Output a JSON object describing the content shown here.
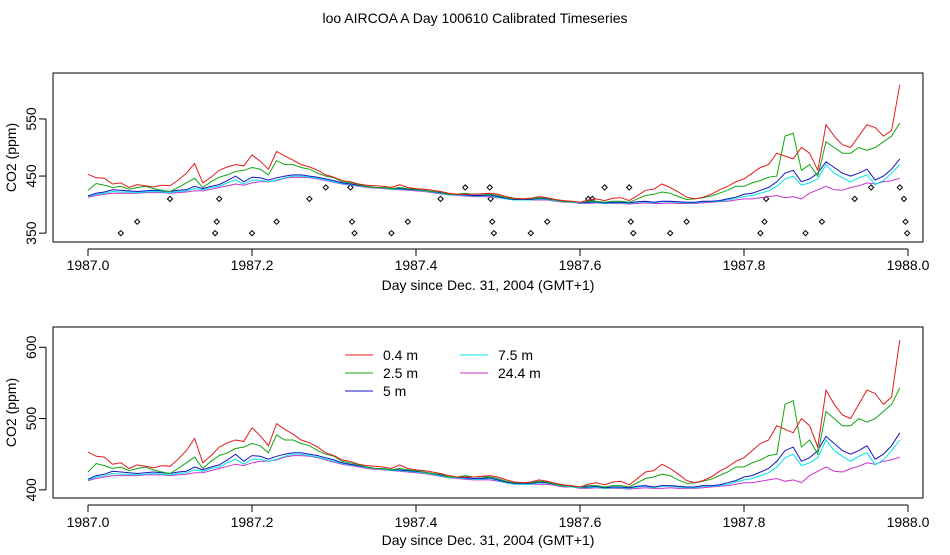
{
  "title": "loo AIRCOA A  Day 100610  Calibrated Timeseries",
  "colors": {
    "0.4 m": "#e41a1c",
    "2.5 m": "#11a611",
    "5 m": "#1414c8",
    "7.5 m": "#00e5e5",
    "24.4 m": "#cc33cc",
    "flags": "#000000"
  },
  "chart_data": [
    {
      "type": "line",
      "xlabel": "Day since Dec. 31, 2004 (GMT+1)",
      "ylabel": "CO2 (ppm)",
      "xlim": [
        1987.0,
        1988.0
      ],
      "ylim": [
        345,
        620
      ],
      "xticks": [
        "1987.0",
        "1987.2",
        "1987.4",
        "1987.6",
        "1987.8",
        "1988.0"
      ],
      "yticks": [
        "350",
        "450",
        "550"
      ],
      "legend": "none",
      "x": [
        1987.0,
        1987.01,
        1987.02,
        1987.03,
        1987.04,
        1987.05,
        1987.06,
        1987.07,
        1987.08,
        1987.09,
        1987.1,
        1987.11,
        1987.12,
        1987.13,
        1987.14,
        1987.15,
        1987.16,
        1987.17,
        1987.18,
        1987.19,
        1987.2,
        1987.21,
        1987.22,
        1987.23,
        1987.24,
        1987.25,
        1987.26,
        1987.27,
        1987.28,
        1987.29,
        1987.3,
        1987.31,
        1987.32,
        1987.33,
        1987.34,
        1987.35,
        1987.36,
        1987.37,
        1987.38,
        1987.39,
        1987.4,
        1987.41,
        1987.42,
        1987.43,
        1987.44,
        1987.45,
        1987.46,
        1987.47,
        1987.48,
        1987.49,
        1987.5,
        1987.51,
        1987.52,
        1987.53,
        1987.54,
        1987.55,
        1987.56,
        1987.57,
        1987.58,
        1987.59,
        1987.6,
        1987.61,
        1987.62,
        1987.63,
        1987.64,
        1987.65,
        1987.66,
        1987.67,
        1987.68,
        1987.69,
        1987.7,
        1987.71,
        1987.72,
        1987.73,
        1987.74,
        1987.75,
        1987.76,
        1987.77,
        1987.78,
        1987.79,
        1987.8,
        1987.81,
        1987.82,
        1987.83,
        1987.84,
        1987.85,
        1987.86,
        1987.87,
        1987.88,
        1987.89,
        1987.9,
        1987.91,
        1987.92,
        1987.93,
        1987.94,
        1987.95,
        1987.96,
        1987.97,
        1987.98,
        1987.99
      ],
      "series": [
        {
          "name": "0.4 m",
          "values": [
            453,
            447,
            446,
            436,
            438,
            430,
            435,
            433,
            431,
            434,
            433,
            443,
            455,
            472,
            438,
            448,
            460,
            466,
            470,
            468,
            487,
            476,
            462,
            493,
            485,
            478,
            470,
            466,
            460,
            452,
            448,
            442,
            440,
            436,
            434,
            433,
            432,
            430,
            435,
            430,
            428,
            427,
            425,
            423,
            420,
            418,
            418,
            418,
            419,
            420,
            418,
            414,
            411,
            410,
            411,
            414,
            412,
            409,
            407,
            406,
            404,
            408,
            410,
            407,
            411,
            412,
            407,
            416,
            425,
            427,
            436,
            430,
            422,
            413,
            410,
            413,
            418,
            426,
            432,
            440,
            445,
            455,
            465,
            470,
            490,
            485,
            480,
            500,
            490,
            460,
            540,
            520,
            505,
            500,
            520,
            540,
            535,
            520,
            530,
            610
          ]
        },
        {
          "name": "2.5 m",
          "values": [
            425,
            437,
            434,
            430,
            432,
            427,
            430,
            432,
            428,
            425,
            423,
            430,
            438,
            446,
            430,
            440,
            448,
            452,
            458,
            460,
            465,
            462,
            452,
            477,
            470,
            470,
            465,
            462,
            455,
            450,
            447,
            440,
            438,
            435,
            432,
            430,
            430,
            428,
            430,
            428,
            427,
            425,
            423,
            422,
            418,
            418,
            420,
            418,
            418,
            418,
            416,
            412,
            410,
            410,
            410,
            412,
            411,
            408,
            406,
            405,
            404,
            406,
            406,
            404,
            406,
            406,
            404,
            410,
            416,
            418,
            422,
            420,
            414,
            409,
            410,
            412,
            415,
            420,
            425,
            432,
            432,
            438,
            442,
            448,
            450,
            520,
            525,
            460,
            470,
            450,
            510,
            500,
            490,
            490,
            500,
            495,
            500,
            510,
            520,
            543
          ]
        },
        {
          "name": "5 m",
          "values": [
            415,
            420,
            422,
            426,
            425,
            424,
            423,
            424,
            425,
            424,
            423,
            425,
            426,
            432,
            428,
            432,
            435,
            442,
            450,
            440,
            448,
            447,
            443,
            447,
            450,
            452,
            452,
            450,
            448,
            445,
            442,
            438,
            436,
            434,
            432,
            430,
            430,
            428,
            428,
            427,
            426,
            425,
            423,
            421,
            418,
            418,
            417,
            416,
            416,
            417,
            414,
            411,
            409,
            409,
            409,
            411,
            410,
            408,
            406,
            405,
            404,
            404,
            405,
            403,
            404,
            404,
            403,
            405,
            406,
            404,
            406,
            406,
            405,
            404,
            404,
            406,
            406,
            407,
            410,
            413,
            418,
            420,
            425,
            430,
            440,
            455,
            460,
            440,
            445,
            455,
            475,
            465,
            455,
            450,
            455,
            462,
            443,
            450,
            462,
            480
          ]
        },
        {
          "name": "7.5 m",
          "values": [
            414,
            418,
            420,
            423,
            422,
            422,
            421,
            422,
            423,
            422,
            421,
            423,
            424,
            428,
            426,
            430,
            432,
            438,
            443,
            436,
            443,
            443,
            440,
            443,
            447,
            450,
            450,
            448,
            446,
            443,
            440,
            437,
            435,
            433,
            431,
            430,
            429,
            427,
            427,
            426,
            425,
            424,
            422,
            420,
            417,
            417,
            416,
            415,
            415,
            416,
            413,
            410,
            408,
            408,
            408,
            410,
            409,
            407,
            405,
            404,
            403,
            403,
            404,
            402,
            403,
            403,
            402,
            404,
            405,
            403,
            405,
            405,
            404,
            403,
            403,
            405,
            405,
            406,
            408,
            411,
            414,
            416,
            420,
            424,
            432,
            445,
            450,
            434,
            438,
            445,
            470,
            455,
            447,
            440,
            447,
            452,
            435,
            442,
            455,
            470
          ]
        },
        {
          "name": "24.4 m",
          "values": [
            413,
            416,
            418,
            420,
            420,
            420,
            420,
            421,
            421,
            421,
            420,
            421,
            422,
            424,
            424,
            427,
            430,
            433,
            436,
            434,
            438,
            440,
            440,
            442,
            446,
            448,
            448,
            447,
            445,
            442,
            439,
            436,
            434,
            432,
            430,
            429,
            428,
            427,
            426,
            425,
            424,
            423,
            421,
            419,
            417,
            416,
            415,
            414,
            414,
            414,
            412,
            410,
            408,
            408,
            408,
            408,
            408,
            406,
            404,
            404,
            402,
            402,
            403,
            402,
            402,
            402,
            401,
            402,
            403,
            402,
            402,
            403,
            402,
            402,
            402,
            403,
            404,
            405,
            406,
            408,
            410,
            410,
            412,
            414,
            416,
            412,
            414,
            410,
            420,
            426,
            432,
            426,
            425,
            430,
            433,
            438,
            436,
            440,
            442,
            446
          ]
        }
      ],
      "flag_points": {
        "x": [
          1987.04,
          1987.06,
          1987.1,
          1987.155,
          1987.157,
          1987.16,
          1987.2,
          1987.23,
          1987.27,
          1987.29,
          1987.32,
          1987.322,
          1987.325,
          1987.37,
          1987.39,
          1987.43,
          1987.46,
          1987.49,
          1987.491,
          1987.493,
          1987.495,
          1987.54,
          1987.56,
          1987.61,
          1987.615,
          1987.63,
          1987.66,
          1987.662,
          1987.665,
          1987.71,
          1987.73,
          1987.82,
          1987.825,
          1987.827,
          1987.875,
          1987.895,
          1987.935,
          1987.955,
          1987.99,
          1987.995,
          1987.997,
          1987.999
        ],
        "y": [
          350,
          370,
          410,
          350,
          370,
          410,
          350,
          370,
          410,
          430,
          430,
          370,
          350,
          350,
          370,
          410,
          430,
          430,
          410,
          370,
          350,
          350,
          370,
          410,
          410,
          430,
          430,
          370,
          350,
          350,
          370,
          350,
          370,
          410,
          350,
          370,
          410,
          430,
          430,
          410,
          370,
          350
        ]
      }
    },
    {
      "type": "line",
      "xlabel": "Day since Dec. 31, 2004 (GMT+1)",
      "ylabel": "CO2 (ppm)",
      "xlim": [
        1987.0,
        1988.0
      ],
      "ylim": [
        397,
        620
      ],
      "xticks": [
        "1987.0",
        "1987.2",
        "1987.4",
        "1987.6",
        "1987.8",
        "1988.0"
      ],
      "yticks": [
        "400",
        "500",
        "600"
      ],
      "legend": "top-left",
      "legend_entries": [
        "0.4 m",
        "2.5 m",
        "5 m",
        "7.5 m",
        "24.4 m"
      ],
      "same_series_as_top": true
    }
  ]
}
